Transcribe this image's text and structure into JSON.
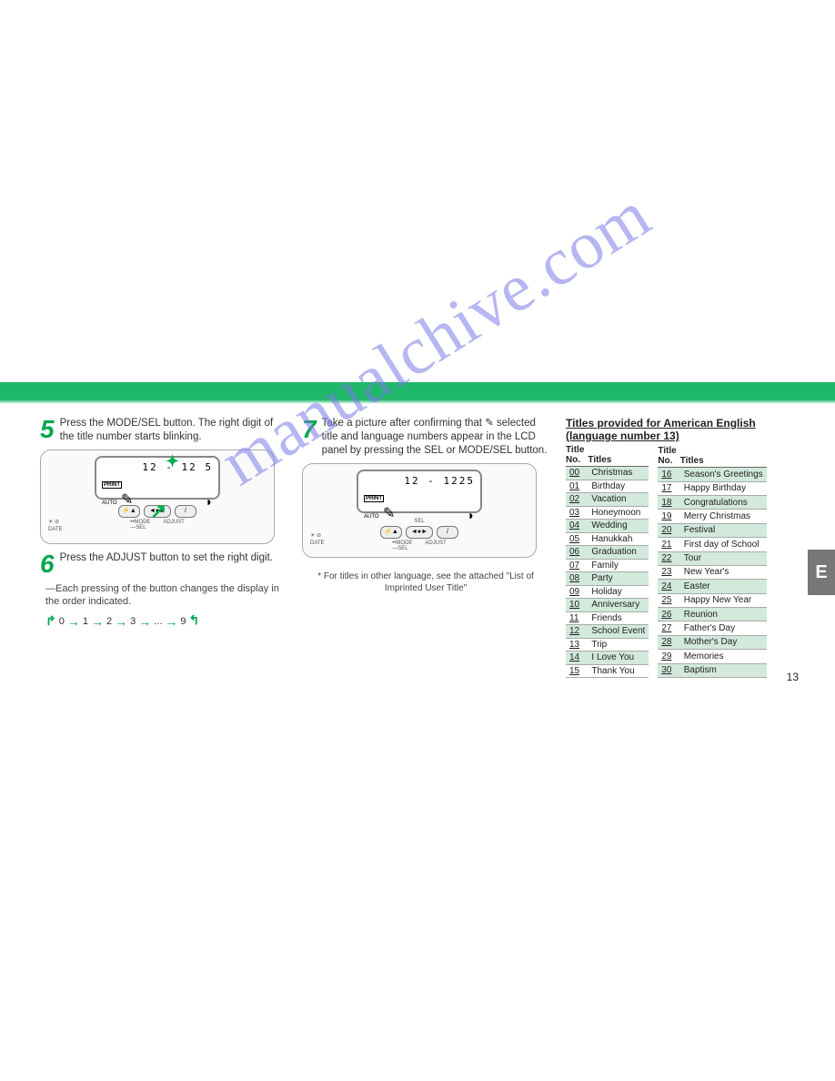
{
  "watermark": "manualchive.com",
  "steps": {
    "s5": {
      "num": "5",
      "text": "Press the MODE/SEL button. The right digit of the title number starts blinking."
    },
    "s6": {
      "num": "6",
      "text": "Press the ADJUST button to set the right digit.",
      "sub": "—Each pressing of the button changes the display in the order indicated."
    },
    "s7": {
      "num": "7",
      "text_a": "Take a picture after confirming that ",
      "text_b": " selected title and language numbers appear in the LCD panel by pressing the SEL or MODE/SEL button."
    }
  },
  "sequence": [
    "0",
    "1",
    "2",
    "3",
    "...",
    "9"
  ],
  "lcd1": {
    "line1": "12 - 12 5",
    "print": "PRINT",
    "auto": "AUTO"
  },
  "lcd2": {
    "line1": "12 - 1225",
    "print": "PRINT",
    "auto": "AUTO"
  },
  "btns": {
    "date": "DATE",
    "mode": "MODE",
    "sel": "SEL",
    "adjust": "ADJUST",
    "sel_top": "SEL"
  },
  "note": "* For titles in other language, see the attached \"List of Imprinted User Title\"",
  "table": {
    "title": "Titles provided for American English (language number 13)",
    "headers": {
      "no": "Title\nNo.",
      "titles": "Titles"
    },
    "left": [
      {
        "n": "00",
        "t": "Christmas"
      },
      {
        "n": "01",
        "t": "Birthday"
      },
      {
        "n": "02",
        "t": "Vacation"
      },
      {
        "n": "03",
        "t": "Honeymoon"
      },
      {
        "n": "04",
        "t": "Wedding"
      },
      {
        "n": "05",
        "t": "Hanukkah"
      },
      {
        "n": "06",
        "t": "Graduation"
      },
      {
        "n": "07",
        "t": "Family"
      },
      {
        "n": "08",
        "t": "Party"
      },
      {
        "n": "09",
        "t": "Holiday"
      },
      {
        "n": "10",
        "t": "Anniversary"
      },
      {
        "n": "11",
        "t": "Friends"
      },
      {
        "n": "12",
        "t": "School Event"
      },
      {
        "n": "13",
        "t": "Trip"
      },
      {
        "n": "14",
        "t": "I Love You"
      },
      {
        "n": "15",
        "t": "Thank You"
      }
    ],
    "right": [
      {
        "n": "16",
        "t": "Season's Greetings"
      },
      {
        "n": "17",
        "t": "Happy Birthday"
      },
      {
        "n": "18",
        "t": "Congratulations"
      },
      {
        "n": "19",
        "t": "Merry Christmas"
      },
      {
        "n": "20",
        "t": "Festival"
      },
      {
        "n": "21",
        "t": "First day of School"
      },
      {
        "n": "22",
        "t": "Tour"
      },
      {
        "n": "23",
        "t": "New Year's"
      },
      {
        "n": "24",
        "t": "Easter"
      },
      {
        "n": "25",
        "t": "Happy New Year"
      },
      {
        "n": "26",
        "t": "Reunion"
      },
      {
        "n": "27",
        "t": "Father's Day"
      },
      {
        "n": "28",
        "t": "Mother's Day"
      },
      {
        "n": "29",
        "t": "Memories"
      },
      {
        "n": "30",
        "t": "Baptism"
      }
    ]
  },
  "page_num": "13",
  "side_tab": "E",
  "colors": {
    "accent": "#00a850",
    "band": "#1fb86a",
    "alt_row": "#d2e9dc",
    "watermark": "#7b7be8"
  }
}
